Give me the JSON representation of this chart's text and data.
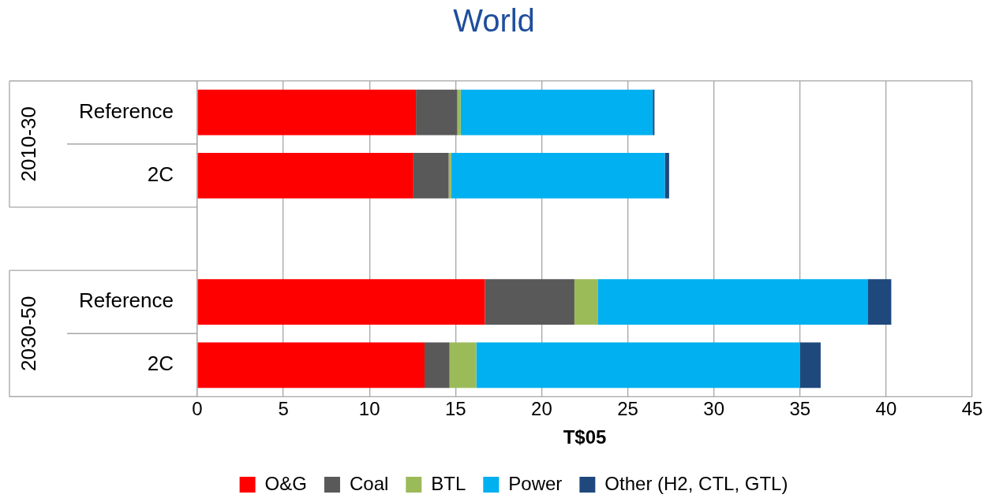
{
  "chart_data": {
    "type": "bar",
    "title": "World",
    "xlabel": "T$05",
    "orientation": "horizontal",
    "stacked": true,
    "categories": [
      "Reference",
      "2C",
      null,
      "Reference",
      "2C"
    ],
    "series": [
      {
        "name": "O&G",
        "color": "#ff0000",
        "values": [
          12.7,
          12.55,
          null,
          16.7,
          13.2
        ]
      },
      {
        "name": "Coal",
        "color": "#595959",
        "values": [
          2.4,
          2.05,
          null,
          5.2,
          1.45
        ]
      },
      {
        "name": "BTL",
        "color": "#9bbb59",
        "values": [
          0.2,
          0.15,
          null,
          1.35,
          1.55
        ]
      },
      {
        "name": "Power",
        "color": "#00b0f0",
        "values": [
          11.15,
          12.4,
          null,
          15.7,
          18.8
        ]
      },
      {
        "name": "Other (H2, CTL, GTL)",
        "color": "#1f497d",
        "values": [
          0.1,
          0.25,
          null,
          1.35,
          1.2
        ]
      }
    ],
    "xlim": [
      0,
      45
    ],
    "xticks": [
      0,
      5,
      10,
      15,
      20,
      25,
      30,
      35,
      40,
      45
    ],
    "annotations": [
      "2010-30",
      "2030-50"
    ],
    "grid": "x",
    "legend": "bottom"
  }
}
